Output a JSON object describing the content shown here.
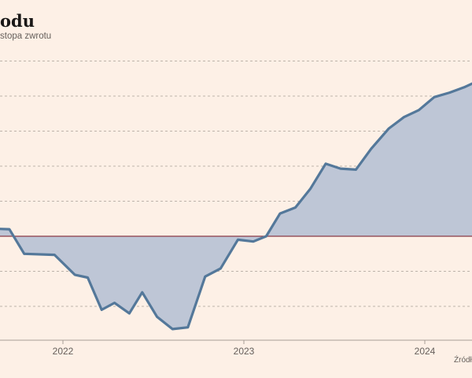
{
  "header": {
    "title": "odu",
    "subtitle": "stopa zwrotu"
  },
  "footer": {
    "source": "Źródło"
  },
  "colors": {
    "background": "#fdf0e6",
    "line": "#54789a",
    "area": "#bec6d6",
    "baseline": "#8a3a46",
    "grid": "#a89e96",
    "text": "#66605c"
  },
  "chart_data": {
    "type": "area",
    "title": "odu",
    "subtitle": "stopa zwrotu",
    "xlabel": "",
    "ylabel": "",
    "x_ticks": [
      "2022",
      "2023",
      "2024"
    ],
    "x_range": [
      "2021-06",
      "2024-08"
    ],
    "y_unit_note": "y axis tick labels not visible; values in gridline steps relative to zero baseline",
    "y_range": [
      -3,
      5
    ],
    "gridlines": true,
    "legend": "none",
    "series": [
      {
        "values": [
          {
            "x": "2021-06-01",
            "y": 0.25
          },
          {
            "x": "2021-09-15",
            "y": 0.2
          },
          {
            "x": "2021-10-15",
            "y": -0.5
          },
          {
            "x": "2021-12-15",
            "y": -0.53
          },
          {
            "x": "2022-01-25",
            "y": -1.1
          },
          {
            "x": "2022-02-20",
            "y": -1.18
          },
          {
            "x": "2022-03-20",
            "y": -2.1
          },
          {
            "x": "2022-04-15",
            "y": -1.9
          },
          {
            "x": "2022-05-15",
            "y": -2.2
          },
          {
            "x": "2022-06-10",
            "y": -1.6
          },
          {
            "x": "2022-07-10",
            "y": -2.3
          },
          {
            "x": "2022-08-10",
            "y": -2.65
          },
          {
            "x": "2022-09-10",
            "y": -2.6
          },
          {
            "x": "2022-10-15",
            "y": -1.15
          },
          {
            "x": "2022-11-15",
            "y": -0.92
          },
          {
            "x": "2022-12-20",
            "y": -0.1
          },
          {
            "x": "2023-01-20",
            "y": -0.15
          },
          {
            "x": "2023-02-15",
            "y": 0.0
          },
          {
            "x": "2023-03-15",
            "y": 0.65
          },
          {
            "x": "2023-04-15",
            "y": 0.82
          },
          {
            "x": "2023-05-15",
            "y": 1.35
          },
          {
            "x": "2023-06-15",
            "y": 2.07
          },
          {
            "x": "2023-07-15",
            "y": 1.93
          },
          {
            "x": "2023-08-15",
            "y": 1.9
          },
          {
            "x": "2023-09-15",
            "y": 2.5
          },
          {
            "x": "2023-10-20",
            "y": 3.07
          },
          {
            "x": "2023-11-20",
            "y": 3.4
          },
          {
            "x": "2023-12-20",
            "y": 3.6
          },
          {
            "x": "2024-01-20",
            "y": 3.97
          },
          {
            "x": "2024-02-20",
            "y": 4.1
          },
          {
            "x": "2024-03-20",
            "y": 4.25
          },
          {
            "x": "2024-04-20",
            "y": 4.45
          }
        ]
      }
    ]
  }
}
